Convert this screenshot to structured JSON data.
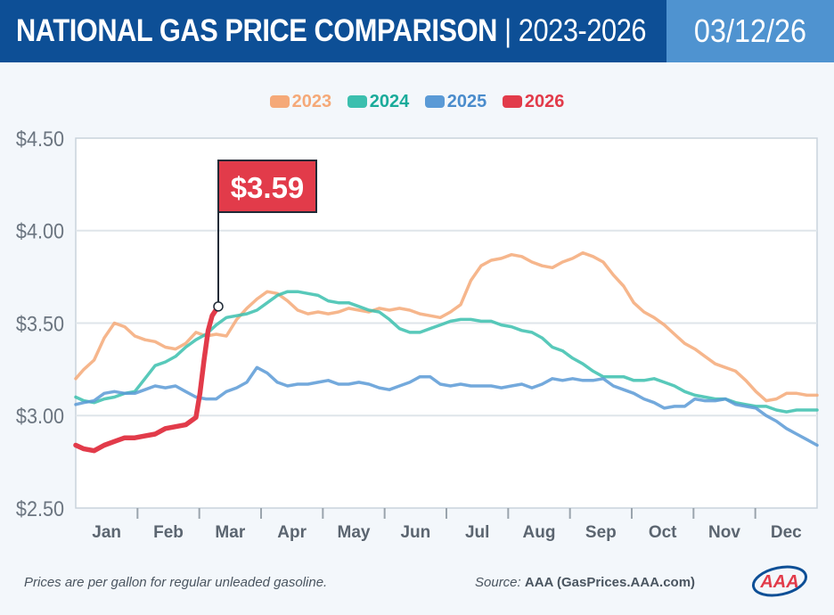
{
  "header": {
    "title_bold": "NATIONAL GAS PRICE COMPARISON",
    "title_sep": "|",
    "title_years": "2023-2026",
    "date": "03/12/26"
  },
  "colors": {
    "header_bg": "#0d4f96",
    "date_bg": "#4f93d0",
    "series_2023": "#f5a978",
    "series_2024": "#3bbfae",
    "series_2025": "#5a9ad6",
    "series_2026": "#e23b4a"
  },
  "chart_data": {
    "type": "line",
    "ylim": [
      2.5,
      4.5
    ],
    "y_ticks": [
      "$4.50",
      "$4.00",
      "$3.50",
      "$3.00",
      "$2.50"
    ],
    "y_tick_values": [
      4.5,
      4.0,
      3.5,
      3.0,
      2.5
    ],
    "grid": true,
    "legend_placement": "top-center",
    "months": [
      "Jan",
      "Feb",
      "Mar",
      "Apr",
      "May",
      "Jun",
      "Jul",
      "Aug",
      "Sep",
      "Oct",
      "Nov",
      "Dec"
    ],
    "x_unit": "day of year",
    "series": [
      {
        "name": "2023",
        "color": "#f5a978",
        "x": [
          1,
          5,
          10,
          15,
          20,
          25,
          30,
          35,
          40,
          45,
          50,
          55,
          60,
          65,
          70,
          75,
          80,
          85,
          90,
          95,
          100,
          105,
          110,
          115,
          120,
          125,
          130,
          135,
          140,
          145,
          150,
          155,
          160,
          165,
          170,
          175,
          180,
          185,
          190,
          195,
          200,
          205,
          210,
          215,
          220,
          225,
          230,
          235,
          240,
          245,
          250,
          255,
          260,
          265,
          270,
          275,
          280,
          285,
          290,
          295,
          300,
          305,
          310,
          315,
          320,
          325,
          330,
          335,
          340,
          345,
          350,
          355,
          360,
          365
        ],
        "values": [
          3.2,
          3.25,
          3.3,
          3.42,
          3.5,
          3.48,
          3.43,
          3.41,
          3.4,
          3.37,
          3.36,
          3.39,
          3.45,
          3.43,
          3.44,
          3.43,
          3.52,
          3.58,
          3.63,
          3.67,
          3.66,
          3.62,
          3.57,
          3.55,
          3.56,
          3.55,
          3.56,
          3.58,
          3.57,
          3.56,
          3.58,
          3.57,
          3.58,
          3.57,
          3.55,
          3.54,
          3.53,
          3.56,
          3.6,
          3.73,
          3.81,
          3.84,
          3.85,
          3.87,
          3.86,
          3.83,
          3.81,
          3.8,
          3.83,
          3.85,
          3.88,
          3.86,
          3.83,
          3.76,
          3.7,
          3.61,
          3.56,
          3.53,
          3.49,
          3.44,
          3.39,
          3.36,
          3.32,
          3.28,
          3.26,
          3.24,
          3.19,
          3.13,
          3.08,
          3.09,
          3.12,
          3.12,
          3.11,
          3.11
        ]
      },
      {
        "name": "2024",
        "color": "#3bbfae",
        "x": [
          1,
          5,
          10,
          15,
          20,
          25,
          30,
          35,
          40,
          45,
          50,
          55,
          60,
          65,
          70,
          75,
          80,
          85,
          90,
          95,
          100,
          105,
          110,
          115,
          120,
          125,
          130,
          135,
          140,
          145,
          150,
          155,
          160,
          165,
          170,
          175,
          180,
          185,
          190,
          195,
          200,
          205,
          210,
          215,
          220,
          225,
          230,
          235,
          240,
          245,
          250,
          255,
          260,
          265,
          270,
          275,
          280,
          285,
          290,
          295,
          300,
          305,
          310,
          315,
          320,
          325,
          330,
          335,
          340,
          345,
          350,
          355,
          360,
          365
        ],
        "values": [
          3.1,
          3.08,
          3.07,
          3.09,
          3.1,
          3.12,
          3.13,
          3.2,
          3.27,
          3.29,
          3.32,
          3.37,
          3.41,
          3.44,
          3.49,
          3.53,
          3.54,
          3.55,
          3.57,
          3.61,
          3.65,
          3.67,
          3.67,
          3.66,
          3.65,
          3.62,
          3.61,
          3.61,
          3.59,
          3.57,
          3.56,
          3.52,
          3.47,
          3.45,
          3.45,
          3.47,
          3.49,
          3.51,
          3.52,
          3.52,
          3.51,
          3.51,
          3.49,
          3.48,
          3.46,
          3.45,
          3.42,
          3.37,
          3.35,
          3.31,
          3.28,
          3.24,
          3.21,
          3.21,
          3.21,
          3.19,
          3.19,
          3.2,
          3.18,
          3.16,
          3.13,
          3.11,
          3.1,
          3.09,
          3.09,
          3.07,
          3.06,
          3.05,
          3.05,
          3.03,
          3.02,
          3.03,
          3.03,
          3.03
        ]
      },
      {
        "name": "2025",
        "color": "#5a9ad6",
        "x": [
          1,
          5,
          10,
          15,
          20,
          25,
          30,
          35,
          40,
          45,
          50,
          55,
          60,
          65,
          70,
          75,
          80,
          85,
          90,
          95,
          100,
          105,
          110,
          115,
          120,
          125,
          130,
          135,
          140,
          145,
          150,
          155,
          160,
          165,
          170,
          175,
          180,
          185,
          190,
          195,
          200,
          205,
          210,
          215,
          220,
          225,
          230,
          235,
          240,
          245,
          250,
          255,
          260,
          265,
          270,
          275,
          280,
          285,
          290,
          295,
          300,
          305,
          310,
          315,
          320,
          325,
          330,
          335,
          340,
          345,
          350,
          355,
          360,
          365
        ],
        "values": [
          3.06,
          3.07,
          3.08,
          3.12,
          3.13,
          3.12,
          3.12,
          3.14,
          3.16,
          3.15,
          3.16,
          3.13,
          3.1,
          3.09,
          3.09,
          3.13,
          3.15,
          3.18,
          3.26,
          3.23,
          3.18,
          3.16,
          3.17,
          3.17,
          3.18,
          3.19,
          3.17,
          3.17,
          3.18,
          3.17,
          3.15,
          3.14,
          3.16,
          3.18,
          3.21,
          3.21,
          3.17,
          3.16,
          3.17,
          3.16,
          3.16,
          3.16,
          3.15,
          3.16,
          3.17,
          3.15,
          3.17,
          3.2,
          3.19,
          3.2,
          3.19,
          3.19,
          3.2,
          3.16,
          3.14,
          3.12,
          3.09,
          3.07,
          3.04,
          3.05,
          3.05,
          3.09,
          3.08,
          3.08,
          3.09,
          3.06,
          3.05,
          3.04,
          3.0,
          2.97,
          2.93,
          2.9,
          2.87,
          2.84
        ]
      },
      {
        "name": "2026",
        "color": "#e23b4a",
        "x": [
          1,
          5,
          10,
          15,
          20,
          25,
          30,
          35,
          40,
          45,
          50,
          55,
          60,
          62,
          64,
          66,
          68,
          71
        ],
        "values": [
          2.84,
          2.82,
          2.81,
          2.84,
          2.86,
          2.88,
          2.88,
          2.89,
          2.9,
          2.93,
          2.94,
          2.95,
          2.99,
          3.12,
          3.3,
          3.46,
          3.54,
          3.59
        ]
      }
    ],
    "annotation": {
      "label": "$3.59",
      "value": 3.59,
      "day": 71
    }
  },
  "footer": {
    "note": "Prices are per gallon for regular unleaded gasoline.",
    "source_label": "Source:",
    "source_value": "AAA (GasPrices.AAA.com)",
    "logo_text": "AAA"
  }
}
